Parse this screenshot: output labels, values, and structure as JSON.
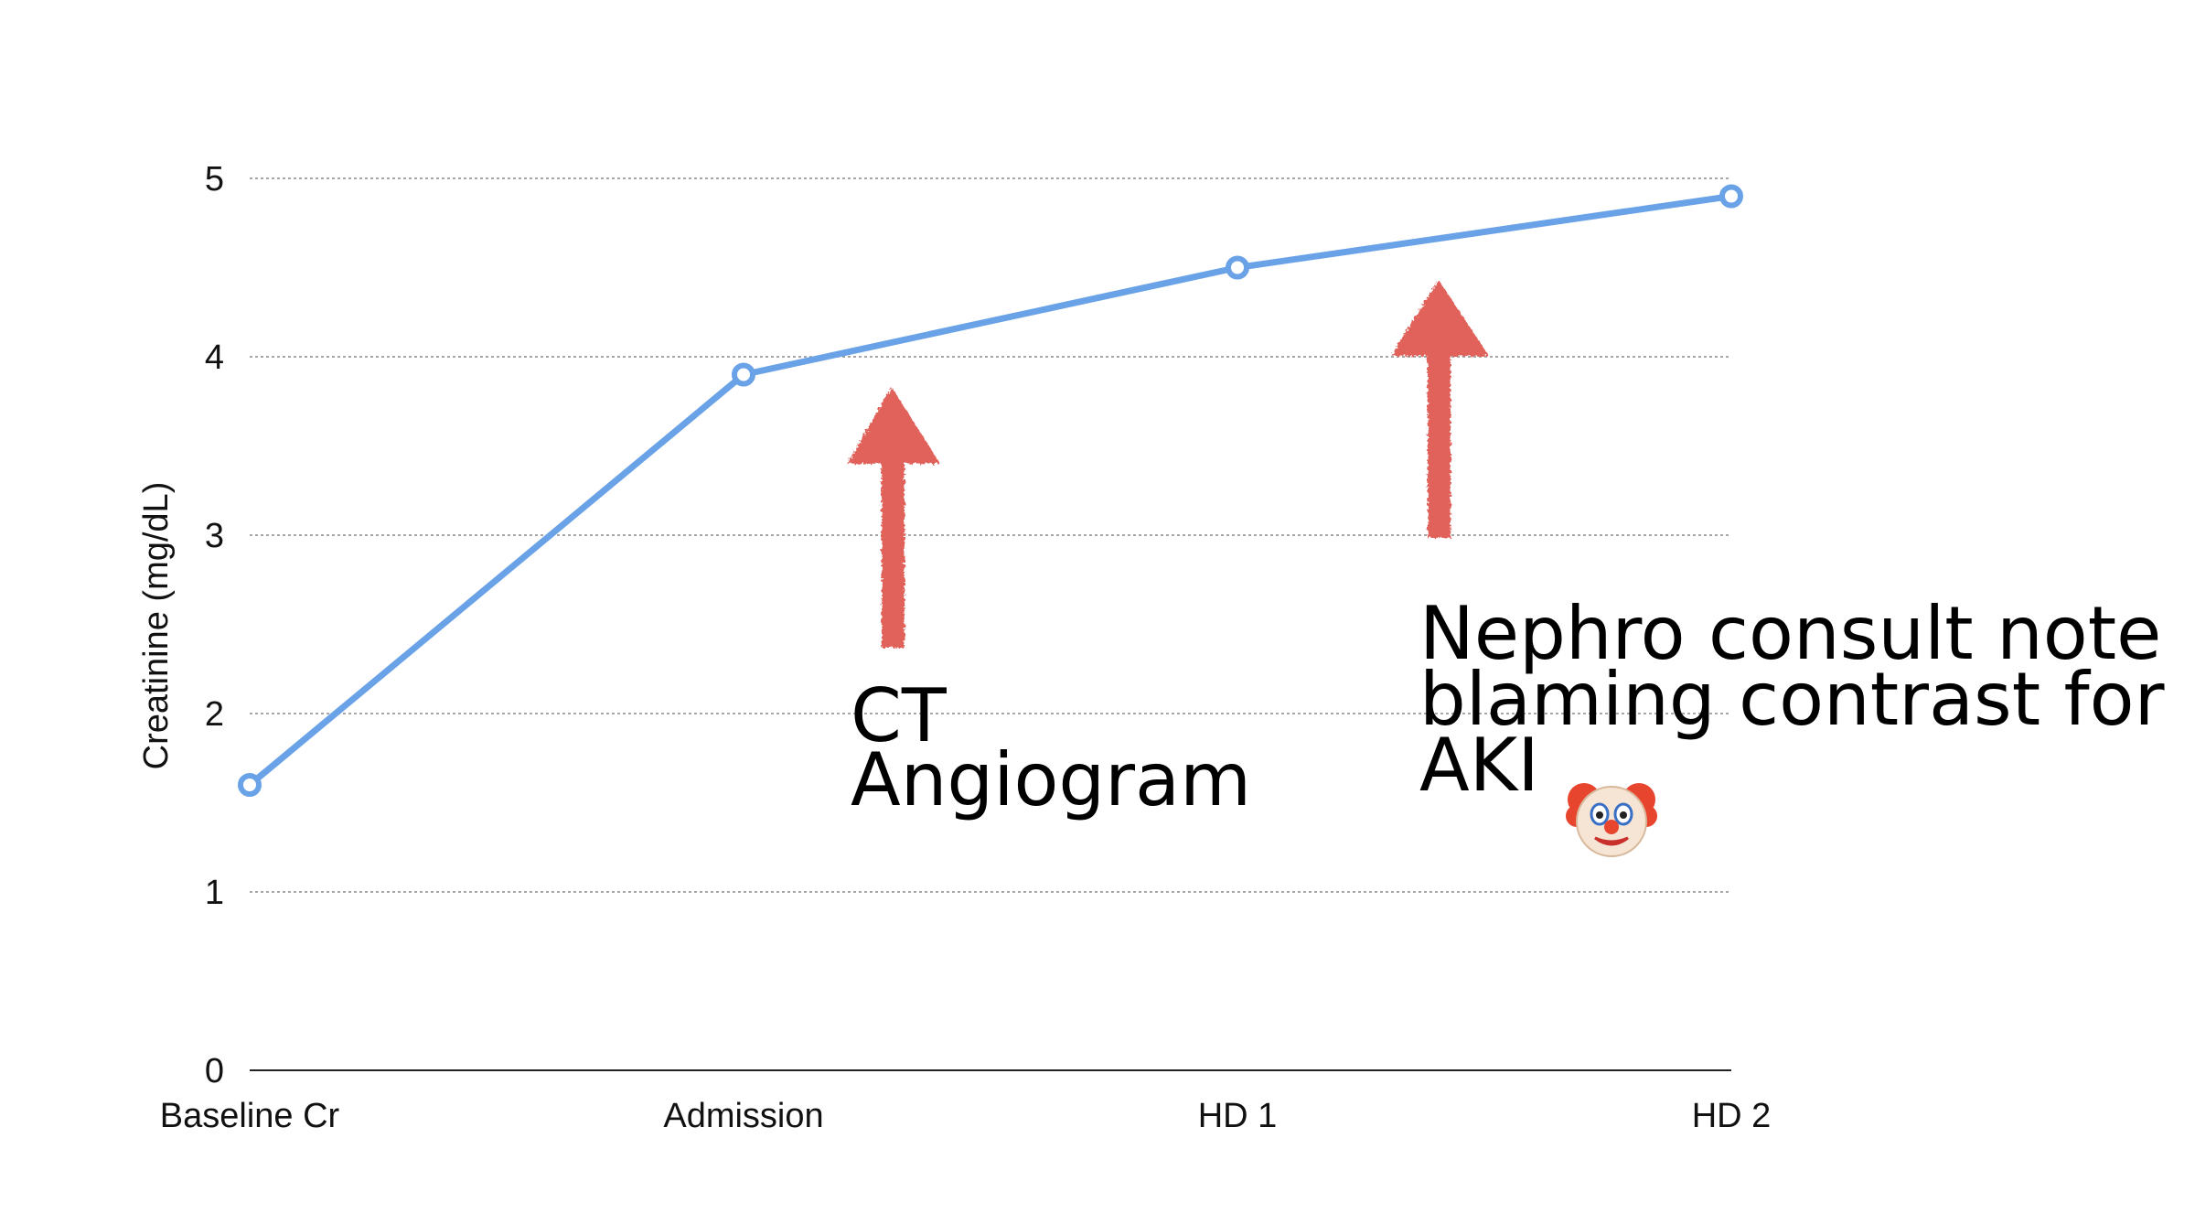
{
  "chart_data": {
    "type": "line",
    "categories": [
      "Baseline Cr",
      "Admission",
      "HD 1",
      "HD 2"
    ],
    "series": [
      {
        "values": [
          1.6,
          3.9,
          4.5,
          4.9
        ],
        "color": "#6aa2e8"
      }
    ],
    "ylabel": "Creatinine (mg/dL)",
    "ylim": [
      0,
      5
    ],
    "yticks": [
      0,
      1,
      2,
      3,
      4,
      5
    ],
    "grid": true,
    "annotations": [
      {
        "lines": [
          "CT",
          "Angiogram"
        ],
        "arrow_color": "#e0625a"
      },
      {
        "lines": [
          "Nephro consult note",
          "blaming contrast for",
          "AKI"
        ],
        "emoji": "clown-face-icon",
        "arrow_color": "#e0625a"
      }
    ]
  }
}
